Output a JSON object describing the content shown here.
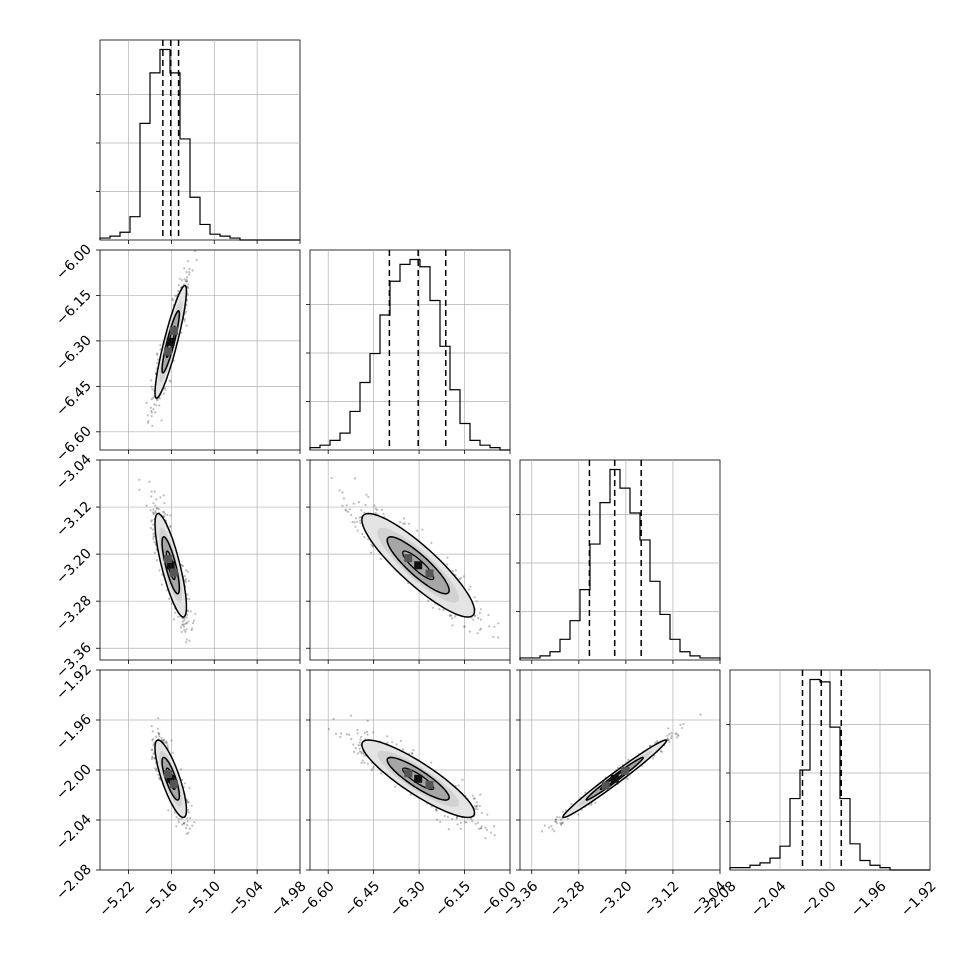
{
  "chart_data": {
    "type": "corner",
    "parameters": [
      {
        "index": 0,
        "range": [
          -5.26,
          -4.98
        ],
        "ticks": [
          "−5.22",
          "−5.16",
          "−5.10",
          "−5.04",
          "−4.98"
        ],
        "tick_values": [
          -5.22,
          -5.16,
          -5.1,
          -5.04,
          -4.98
        ],
        "quantiles": [
          -5.172,
          -5.161,
          -5.15
        ],
        "hist": [
          1,
          2,
          4,
          12,
          60,
          86,
          98,
          86,
          52,
          22,
          8,
          3,
          2,
          1,
          0,
          0,
          0,
          0,
          0,
          0
        ]
      },
      {
        "index": 1,
        "range": [
          -6.66,
          -6.0
        ],
        "ticks": [
          "−6.60",
          "−6.45",
          "−6.30",
          "−6.15",
          "−6.00"
        ],
        "tick_values": [
          -6.6,
          -6.45,
          -6.3,
          -6.15,
          -6.0
        ],
        "quantiles": [
          -6.398,
          -6.303,
          -6.212
        ],
        "hist": [
          1,
          2,
          4,
          7,
          16,
          28,
          40,
          56,
          70,
          77,
          79,
          76,
          62,
          43,
          25,
          11,
          4,
          2,
          1,
          0
        ]
      },
      {
        "index": 2,
        "range": [
          -3.38,
          -3.04
        ],
        "ticks": [
          "−3.36",
          "−3.28",
          "−3.20",
          "−3.12",
          "−3.04"
        ],
        "tick_values": [
          -3.36,
          -3.28,
          -3.2,
          -3.12,
          -3.04
        ],
        "quantiles": [
          -3.262,
          -3.219,
          -3.174
        ],
        "hist": [
          1,
          1,
          2,
          4,
          10,
          19,
          34,
          56,
          76,
          92,
          83,
          71,
          58,
          38,
          22,
          10,
          4,
          2,
          1,
          1
        ]
      },
      {
        "index": 3,
        "range": [
          -2.08,
          -1.92
        ],
        "ticks": [
          "−2.08",
          "−2.04",
          "−2.00",
          "−1.96",
          "−1.92"
        ],
        "tick_values": [
          -2.08,
          -2.04,
          -2.0,
          -1.96,
          -1.92
        ],
        "quantiles": [
          -2.022,
          -2.007,
          -1.991
        ],
        "hist": [
          1,
          1,
          2,
          3,
          5,
          10,
          30,
          42,
          80,
          79,
          60,
          30,
          11,
          4,
          2,
          1,
          0,
          0,
          0,
          0
        ]
      }
    ],
    "row_tick_labels": {
      "1": [
        "−6.00",
        "−6.15",
        "−6.30",
        "−6.45",
        "−6.60"
      ],
      "2": [
        "−3.04",
        "−3.12",
        "−3.20",
        "−3.28",
        "−3.36"
      ],
      "3": [
        "−1.92",
        "−1.96",
        "−2.00",
        "−2.04",
        "−2.08"
      ]
    },
    "correlations": {
      "1_0": 0.9,
      "2_0": -0.8,
      "2_1": -0.88,
      "3_0": -0.8,
      "3_1": -0.88,
      "3_2": 0.985
    },
    "grid": true,
    "xlabel": "",
    "ylabel": "",
    "title": ""
  },
  "colors": {
    "line": "#000000",
    "grid": "#b0b0b0",
    "scatter": "#444444",
    "contour_fill_outer": "#e4e4e4",
    "contour_fill_inner": "#a6a6a6",
    "peak": "#111111"
  }
}
